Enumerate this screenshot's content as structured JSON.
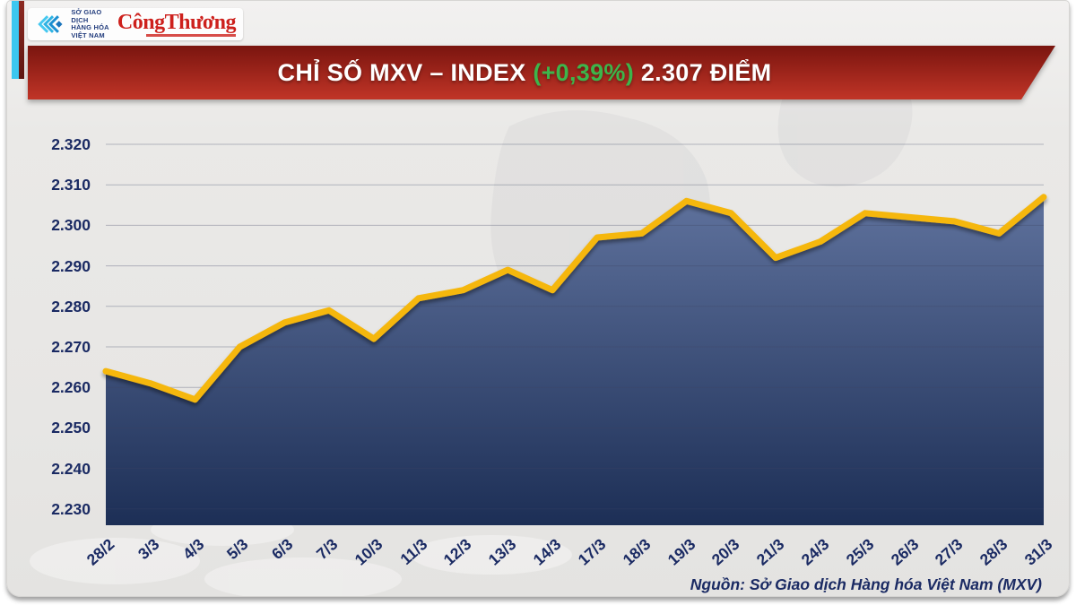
{
  "logo_box": {
    "mxv_name_lines": [
      "SỞ GIAO DỊCH",
      "HÀNG HÓA",
      "VIỆT NAM"
    ],
    "congthuong": "CôngThương"
  },
  "banner": {
    "title_main": "CHỈ SỐ MXV – INDEX",
    "title_change": "(+0,39%)",
    "title_points": "2.307 ĐIỂM",
    "bg_top": "#7a150f",
    "bg_bottom": "#c13527",
    "change_color": "#3db54b"
  },
  "chart_data": {
    "type": "area",
    "title": "CHỈ SỐ MXV – INDEX (+0,39%) 2.307 ĐIỂM",
    "x_labels": [
      "28/2",
      "3/3",
      "4/3",
      "5/3",
      "6/3",
      "7/3",
      "10/3",
      "11/3",
      "12/3",
      "13/3",
      "14/3",
      "17/3",
      "18/3",
      "19/3",
      "20/3",
      "21/3",
      "24/3",
      "25/3",
      "26/3",
      "27/3",
      "28/3",
      "31/3"
    ],
    "values": [
      2264,
      2261,
      2257,
      2270,
      2276,
      2279,
      2272,
      2282,
      2284,
      2289,
      2284,
      2297,
      2298,
      2306,
      2303,
      2292,
      2296,
      2303,
      2302,
      2301,
      2298,
      2307
    ],
    "value_display_divisor": 1000,
    "y_ticks": [
      2320,
      2310,
      2300,
      2290,
      2280,
      2270,
      2260,
      2250,
      2240,
      2230
    ],
    "ylim": [
      2226,
      2320
    ],
    "xlabel": "",
    "ylabel": "",
    "unit": "điểm",
    "grid": true,
    "legend": false,
    "line_color": "#f5b70d",
    "area_gradient_top": "#60739e",
    "area_gradient_bottom": "#1a2c53",
    "tick_label_color": "#1a2a63"
  },
  "footer": {
    "source": "Nguồn: Sở Giao dịch Hàng hóa Việt Nam (MXV)"
  }
}
